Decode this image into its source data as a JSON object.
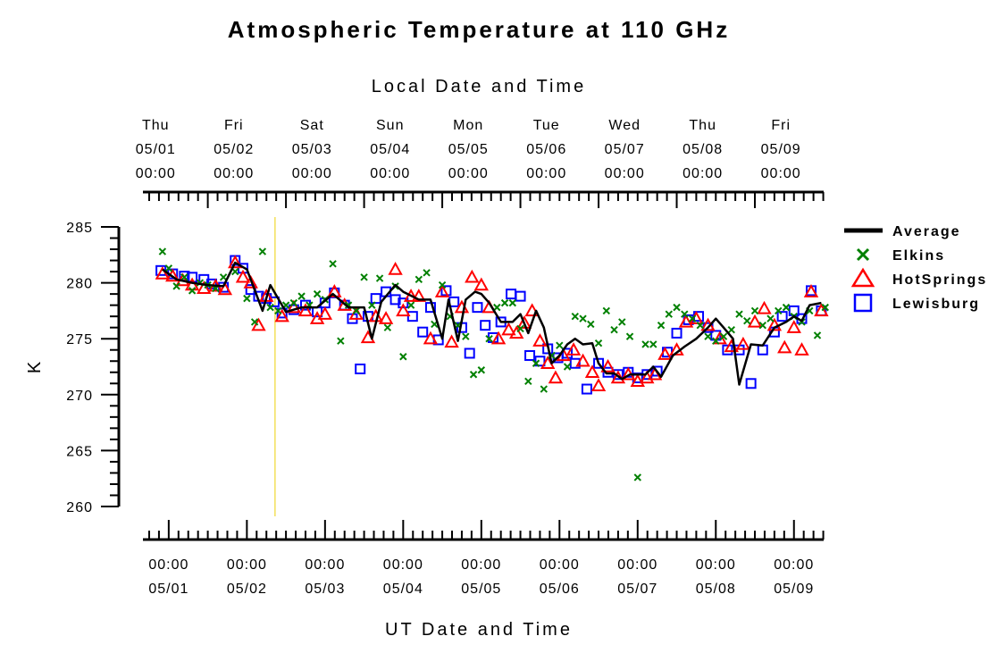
{
  "chart_data": {
    "type": "line",
    "title": "Atmospheric Temperature at 110 GHz",
    "top_axis_label": "Local Date and Time",
    "bottom_axis_label": "UT Date and Time",
    "ylabel": "K",
    "ylim": [
      260,
      285
    ],
    "yticks": [
      260,
      265,
      270,
      275,
      280,
      285
    ],
    "x_unit": "days since 05/01 00:00 UT",
    "xlim": [
      -0.33,
      8.38
    ],
    "local_ticks": [
      {
        "day": "Thu",
        "date": "05/01",
        "time": "00:00"
      },
      {
        "day": "Fri",
        "date": "05/02",
        "time": "00:00"
      },
      {
        "day": "Sat",
        "date": "05/03",
        "time": "00:00"
      },
      {
        "day": "Sun",
        "date": "05/04",
        "time": "00:00"
      },
      {
        "day": "Mon",
        "date": "05/05",
        "time": "00:00"
      },
      {
        "day": "Tue",
        "date": "05/06",
        "time": "00:00"
      },
      {
        "day": "Wed",
        "date": "05/07",
        "time": "00:00"
      },
      {
        "day": "Thu",
        "date": "05/08",
        "time": "00:00"
      },
      {
        "day": "Fri",
        "date": "05/09",
        "time": "00:00"
      }
    ],
    "ut_ticks": [
      {
        "time": "00:00",
        "date": "05/01"
      },
      {
        "time": "00:00",
        "date": "05/02"
      },
      {
        "time": "00:00",
        "date": "05/03"
      },
      {
        "time": "00:00",
        "date": "05/04"
      },
      {
        "time": "00:00",
        "date": "05/05"
      },
      {
        "time": "00:00",
        "date": "05/06"
      },
      {
        "time": "00:00",
        "date": "05/07"
      },
      {
        "time": "00:00",
        "date": "05/08"
      },
      {
        "time": "00:00",
        "date": "05/09"
      }
    ],
    "current_time_marker_x": 1.36,
    "legend_position": "right",
    "series": [
      {
        "name": "Average",
        "marker": "line",
        "color": "#000000",
        "x": [
          -0.08,
          0.1,
          0.3,
          0.5,
          0.7,
          0.85,
          1.0,
          1.2,
          1.3,
          1.5,
          1.7,
          1.9,
          2.1,
          2.3,
          2.5,
          2.6,
          2.72,
          2.9,
          3.0,
          3.2,
          3.35,
          3.5,
          3.58,
          3.7,
          3.8,
          3.92,
          4.0,
          4.1,
          4.25,
          4.4,
          4.5,
          4.6,
          4.7,
          4.8,
          4.9,
          5.0,
          5.1,
          5.2,
          5.3,
          5.42,
          5.5,
          5.6,
          5.7,
          5.8,
          5.9,
          6.1,
          6.2,
          6.3,
          6.45,
          6.6,
          6.75,
          6.9,
          7.0,
          7.1,
          7.22,
          7.3,
          7.45,
          7.6,
          7.75,
          7.9,
          8.0,
          8.1,
          8.2,
          8.35
        ],
        "y": [
          281.2,
          280.3,
          280.0,
          279.8,
          279.7,
          281.8,
          281.2,
          277.5,
          279.8,
          277.4,
          277.8,
          277.8,
          279.0,
          277.8,
          277.8,
          275.0,
          278.3,
          279.8,
          279.2,
          278.5,
          278.5,
          275.0,
          278.5,
          274.8,
          278.5,
          279.2,
          279.0,
          278.2,
          276.5,
          276.5,
          277.2,
          275.5,
          277.5,
          276.0,
          272.8,
          273.5,
          274.5,
          275.0,
          274.5,
          274.6,
          272.8,
          271.9,
          271.9,
          271.4,
          271.8,
          271.8,
          272.5,
          271.6,
          273.5,
          274.3,
          275.0,
          276.0,
          276.8,
          276.0,
          275.0,
          270.9,
          274.5,
          274.4,
          276.0,
          276.5,
          277.0,
          276.6,
          278.0,
          278.2
        ]
      },
      {
        "name": "Elkins",
        "marker": "x",
        "color": "#008000",
        "x": [
          -0.08,
          0.0,
          0.1,
          0.2,
          0.3,
          0.4,
          0.5,
          0.6,
          0.7,
          0.85,
          1.0,
          1.1,
          1.2,
          1.3,
          1.4,
          1.5,
          1.6,
          1.7,
          1.8,
          1.9,
          2.0,
          2.1,
          2.2,
          2.3,
          2.4,
          2.5,
          2.6,
          2.7,
          2.8,
          2.9,
          3.0,
          3.1,
          3.2,
          3.3,
          3.4,
          3.5,
          3.6,
          3.7,
          3.8,
          3.9,
          4.0,
          4.1,
          4.2,
          4.3,
          4.4,
          4.5,
          4.6,
          4.7,
          4.8,
          4.9,
          5.0,
          5.1,
          5.2,
          5.3,
          5.4,
          5.5,
          5.6,
          5.7,
          5.8,
          5.9,
          6.0,
          6.1,
          6.2,
          6.3,
          6.4,
          6.5,
          6.6,
          6.7,
          6.8,
          6.9,
          7.0,
          7.1,
          7.2,
          7.3,
          7.4,
          7.5,
          7.6,
          7.7,
          7.8,
          7.9,
          8.0,
          8.1,
          8.2,
          8.3,
          8.4
        ],
        "y": [
          282.8,
          281.3,
          279.7,
          280.5,
          279.3,
          280.0,
          279.8,
          279.5,
          280.5,
          281.0,
          278.6,
          276.5,
          282.8,
          277.8,
          277.5,
          278.0,
          278.2,
          278.8,
          278.0,
          279.0,
          278.5,
          281.7,
          274.8,
          278.0,
          277.5,
          280.5,
          278.0,
          280.4,
          276.0,
          279.7,
          273.4,
          278.0,
          280.3,
          280.9,
          276.3,
          279.8,
          277.0,
          276.2,
          275.2,
          271.8,
          272.2,
          275.0,
          277.8,
          278.2,
          278.2,
          275.9,
          271.2,
          272.8,
          270.5,
          273.5,
          274.4,
          272.5,
          277.0,
          276.8,
          276.3,
          274.6,
          277.5,
          275.8,
          276.5,
          275.2,
          262.6,
          274.5,
          274.5,
          276.2,
          277.2,
          277.8,
          277.2,
          276.8,
          276.2,
          275.2,
          274.8,
          275.2,
          275.8,
          277.2,
          276.6,
          277.5,
          276.2,
          276.8,
          277.5,
          277.8,
          277.0,
          276.5,
          277.5,
          275.3,
          277.8
        ]
      },
      {
        "name": "HotSprings",
        "marker": "triangle",
        "color": "#ff0000",
        "x": [
          -0.08,
          0.05,
          0.18,
          0.3,
          0.45,
          0.6,
          0.72,
          0.85,
          0.95,
          1.05,
          1.15,
          1.25,
          1.45,
          1.6,
          1.75,
          1.9,
          2.0,
          2.12,
          2.25,
          2.4,
          2.55,
          2.65,
          2.78,
          2.9,
          3.0,
          3.1,
          3.2,
          3.35,
          3.5,
          3.62,
          3.75,
          3.88,
          4.0,
          4.1,
          4.22,
          4.35,
          4.45,
          4.55,
          4.65,
          4.75,
          4.85,
          4.95,
          5.05,
          5.18,
          5.3,
          5.42,
          5.5,
          5.62,
          5.75,
          5.88,
          6.0,
          6.12,
          6.22,
          6.35,
          6.5,
          6.62,
          6.75,
          6.9,
          7.05,
          7.2,
          7.35,
          7.5,
          7.62,
          7.75,
          7.88,
          8.0,
          8.1,
          8.22,
          8.35
        ],
        "y": [
          280.8,
          280.6,
          280.2,
          279.8,
          279.5,
          279.7,
          279.4,
          281.8,
          280.5,
          280.0,
          276.2,
          278.8,
          277.0,
          277.8,
          277.5,
          276.8,
          277.2,
          279.2,
          278.0,
          277.2,
          275.1,
          277.0,
          276.8,
          281.2,
          277.5,
          278.8,
          278.8,
          275.0,
          279.2,
          274.7,
          277.8,
          280.5,
          279.8,
          277.8,
          275.0,
          275.8,
          275.5,
          276.4,
          277.5,
          274.8,
          272.8,
          271.5,
          273.5,
          274.0,
          273.0,
          272.0,
          270.8,
          272.5,
          271.5,
          271.8,
          271.2,
          271.5,
          271.8,
          273.6,
          274.0,
          276.5,
          276.8,
          276.2,
          275.0,
          274.3,
          274.5,
          276.5,
          277.7,
          276.2,
          274.2,
          276.0,
          274.0,
          279.2,
          277.5
        ]
      },
      {
        "name": "Lewisburg",
        "marker": "square",
        "color": "#0000ff",
        "x": [
          -0.1,
          0.05,
          0.2,
          0.3,
          0.45,
          0.55,
          0.7,
          0.85,
          0.95,
          1.05,
          1.15,
          1.25,
          1.35,
          1.45,
          1.6,
          1.75,
          1.9,
          2.0,
          2.12,
          2.25,
          2.35,
          2.45,
          2.55,
          2.65,
          2.78,
          2.9,
          3.0,
          3.12,
          3.25,
          3.35,
          3.45,
          3.55,
          3.65,
          3.75,
          3.85,
          3.95,
          4.05,
          4.15,
          4.25,
          4.38,
          4.5,
          4.62,
          4.75,
          4.85,
          4.98,
          5.1,
          5.2,
          5.35,
          5.5,
          5.62,
          5.75,
          5.88,
          6.0,
          6.12,
          6.25,
          6.38,
          6.5,
          6.65,
          6.78,
          6.9,
          7.0,
          7.15,
          7.3,
          7.45,
          7.6,
          7.75,
          7.85,
          8.0,
          8.1,
          8.22,
          8.35
        ],
        "y": [
          281.1,
          280.8,
          280.6,
          280.5,
          280.3,
          279.9,
          279.6,
          282.0,
          281.3,
          279.4,
          278.8,
          278.6,
          278.3,
          277.3,
          277.6,
          278.0,
          277.4,
          278.2,
          279.1,
          278.0,
          276.8,
          272.3,
          277.0,
          278.6,
          279.2,
          278.5,
          278.2,
          277.0,
          275.6,
          277.8,
          274.9,
          279.3,
          278.3,
          276.0,
          273.7,
          277.8,
          276.2,
          275.1,
          276.5,
          279.0,
          278.8,
          273.5,
          273.0,
          274.1,
          273.3,
          273.7,
          272.8,
          270.5,
          272.8,
          272.0,
          271.8,
          272.0,
          271.5,
          271.8,
          272.1,
          273.8,
          275.5,
          276.7,
          277.0,
          276.0,
          275.3,
          274.0,
          274.0,
          271.0,
          274.0,
          275.6,
          277.0,
          277.5,
          276.8,
          279.3,
          277.5
        ]
      }
    ]
  }
}
